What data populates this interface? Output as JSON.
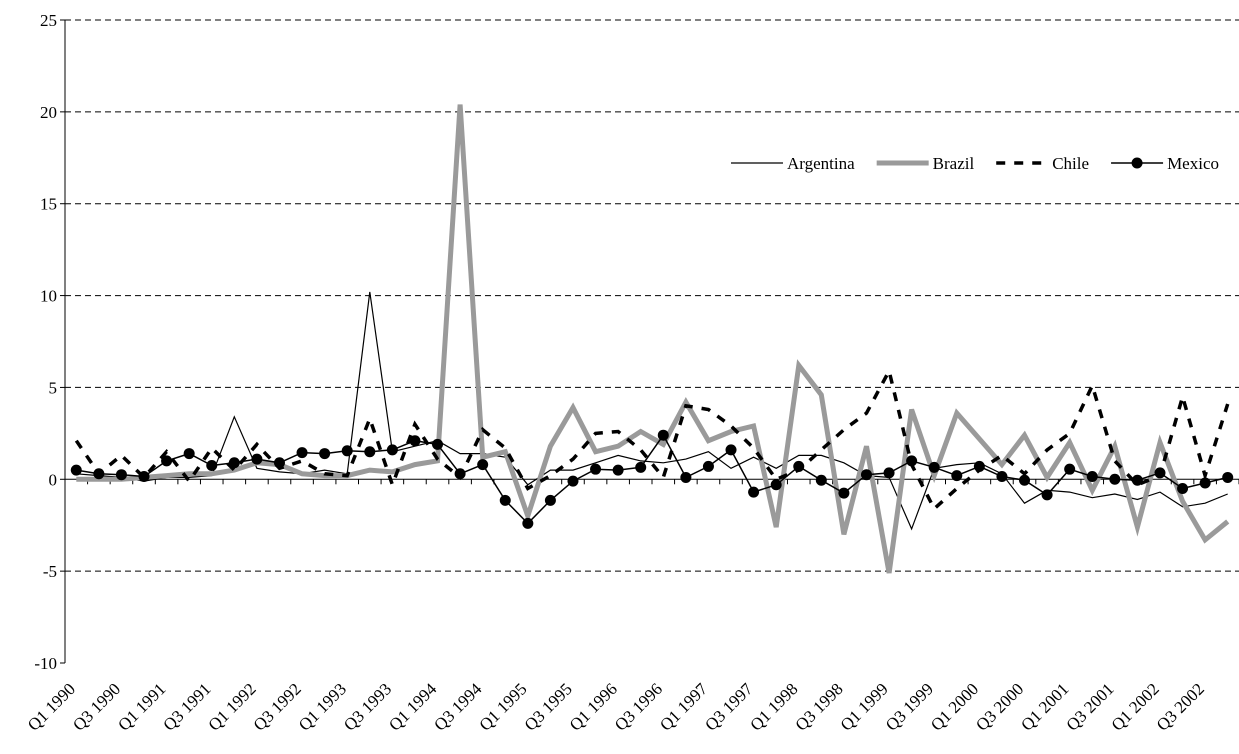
{
  "chart_data": {
    "type": "line",
    "categories": [
      "Q1 1990",
      null,
      "Q3 1990",
      null,
      "Q1 1991",
      null,
      "Q3 1991",
      null,
      "Q1 1992",
      null,
      "Q3 1992",
      null,
      "Q1 1993",
      null,
      "Q3 1993",
      null,
      "Q1 1994",
      null,
      "Q3 1994",
      null,
      "Q1 1995",
      null,
      "Q3 1995",
      null,
      "Q1 1996",
      null,
      "Q3 1996",
      null,
      "Q1 1997",
      null,
      "Q3 1997",
      null,
      "Q1 1998",
      null,
      "Q3 1998",
      null,
      "Q1 1999",
      null,
      "Q3 1999",
      null,
      "Q1 2000",
      null,
      "Q3 2000",
      null,
      "Q1 2001",
      null,
      "Q3 2001",
      null,
      "Q1 2002",
      null,
      "Q3 2002",
      null
    ],
    "series": [
      {
        "name": "Argentina",
        "color": "#000000",
        "line_style": "thin",
        "values": [
          0.3,
          0.2,
          0.1,
          -0.1,
          0.1,
          0.1,
          0.2,
          3.4,
          0.6,
          0.4,
          0.3,
          0.5,
          0.3,
          10.2,
          1.5,
          1.8,
          2.1,
          1.4,
          1.4,
          1.2,
          -0.3,
          0.5,
          0.5,
          0.9,
          1.3,
          1.0,
          0.9,
          1.1,
          1.5,
          0.6,
          1.2,
          0.6,
          1.3,
          1.3,
          0.9,
          0.2,
          0.1,
          -2.7,
          0.6,
          0.8,
          0.9,
          0.3,
          -1.3,
          -0.6,
          -0.7,
          -1.0,
          -0.8,
          -1.1,
          -0.7,
          -1.5,
          -1.3,
          -0.8
        ]
      },
      {
        "name": "Brazil",
        "color": "#9a9a9a",
        "line_style": "thick",
        "values": [
          0,
          0,
          0,
          0.1,
          0.2,
          0.3,
          0.3,
          0.5,
          0.9,
          0.8,
          0.3,
          0.2,
          0.2,
          0.5,
          0.4,
          0.8,
          1.0,
          20.4,
          1.2,
          1.5,
          -2.0,
          1.8,
          3.9,
          1.5,
          1.8,
          2.6,
          1.9,
          4.2,
          2.1,
          2.6,
          2.9,
          -2.6,
          6.2,
          4.6,
          -3.0,
          1.8,
          -5.1,
          3.8,
          0.2,
          3.6,
          2.2,
          0.8,
          2.4,
          0.1,
          2.0,
          -0.6,
          1.8,
          -2.6,
          2.0,
          -1.2,
          -3.3,
          -2.3
        ]
      },
      {
        "name": "Chile",
        "color": "#000000",
        "line_style": "dashed",
        "values": [
          2.1,
          0.3,
          1.3,
          0.1,
          1.5,
          -0.1,
          1.7,
          0.5,
          1.9,
          0.6,
          1.0,
          0.3,
          0.2,
          3.3,
          -0.3,
          3.0,
          1.1,
          0.1,
          2.7,
          1.7,
          -0.5,
          0.2,
          1.1,
          2.5,
          2.6,
          1.6,
          0.1,
          4.0,
          3.8,
          2.9,
          1.7,
          0,
          0.5,
          1.6,
          2.7,
          3.6,
          5.9,
          0.8,
          -1.6,
          -0.5,
          0.5,
          1.3,
          0.3,
          1.6,
          2.5,
          5.1,
          1.0,
          -0.3,
          0.2,
          4.5,
          0.2,
          4.1
        ]
      },
      {
        "name": "Mexico",
        "color": "#000000",
        "line_style": "solid",
        "marker": "circle",
        "values": [
          0.5,
          0.3,
          0.25,
          0.15,
          1.0,
          1.4,
          0.75,
          0.9,
          1.1,
          0.9,
          1.45,
          1.4,
          1.55,
          1.5,
          1.6,
          2.1,
          1.9,
          0.3,
          0.8,
          -1.15,
          -2.4,
          -1.15,
          -0.1,
          0.55,
          0.5,
          0.65,
          2.4,
          0.1,
          0.7,
          1.6,
          -0.7,
          -0.3,
          0.7,
          -0.05,
          -0.75,
          0.25,
          0.35,
          1.0,
          0.65,
          0.2,
          0.7,
          0.15,
          -0.05,
          -0.85,
          0.55,
          0.15,
          0,
          -0.05,
          0.35,
          -0.5,
          -0.2,
          0.1
        ]
      }
    ],
    "ylim": [
      -10,
      25
    ],
    "yticks": [
      -10,
      -5,
      0,
      5,
      10,
      15,
      20,
      25
    ],
    "grid": true,
    "legend": "upper right"
  }
}
